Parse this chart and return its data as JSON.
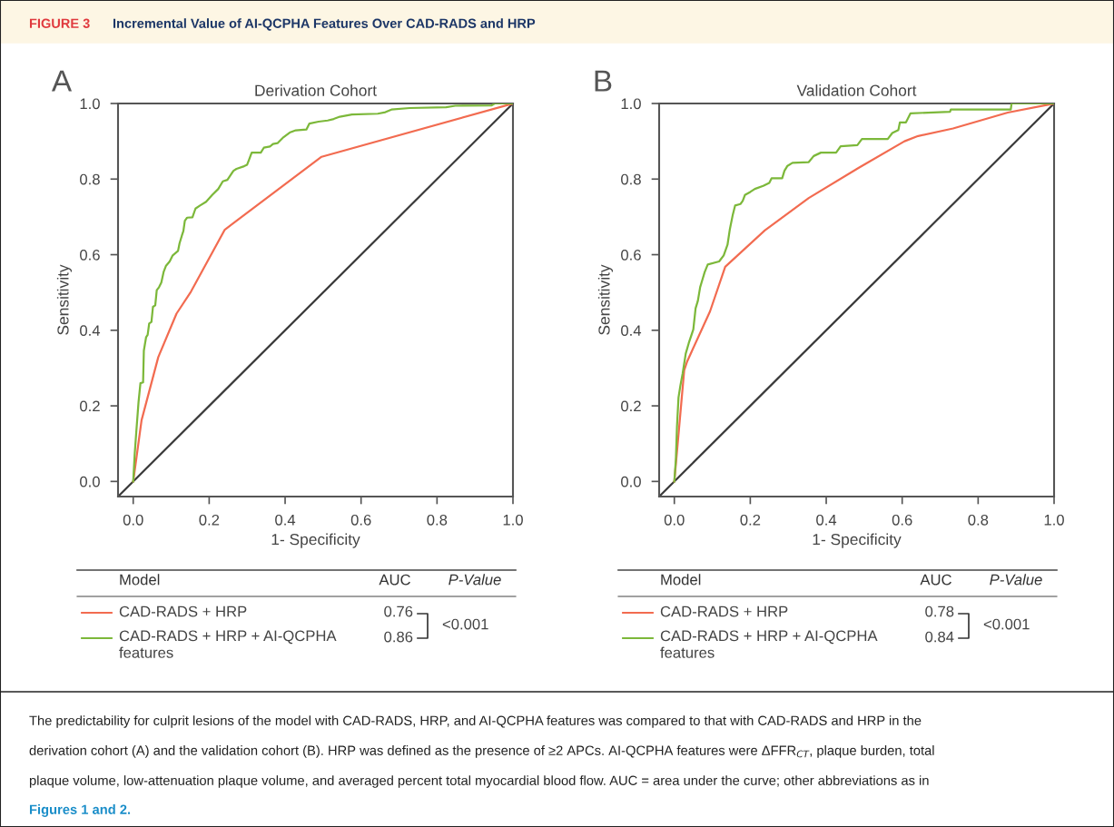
{
  "chart_data": [
    {
      "type": "line",
      "title": "Derivation Cohort",
      "xlabel": "1- Specificity",
      "ylabel": "Sensitivity",
      "xlim": [
        -0.04,
        1.0
      ],
      "ylim": [
        -0.04,
        1.0
      ],
      "xticks": [
        {
          "value": 0,
          "label": "0.0"
        },
        {
          "value": 0.2,
          "label": "0.2"
        },
        {
          "value": 0.4,
          "label": "0.4"
        },
        {
          "value": 0.6,
          "label": "0.6"
        },
        {
          "value": 0.8,
          "label": "0.8"
        },
        {
          "value": 1.0,
          "label": "1.0"
        }
      ],
      "yticks": [
        {
          "value": 0,
          "label": "0.0"
        },
        {
          "value": 0.2,
          "label": "0.2"
        },
        {
          "value": 0.4,
          "label": "0.4"
        },
        {
          "value": 0.6,
          "label": "0.6"
        },
        {
          "value": 0.8,
          "label": "0.8"
        },
        {
          "value": 1.0,
          "label": "1.0"
        }
      ],
      "grid": false,
      "legend": "bottom",
      "marker": "none",
      "line_style": "solid",
      "series": [
        {
          "color": "#3a3a3a",
          "x": [
            -0.04,
            1.0
          ],
          "values": [
            -0.04,
            1.0
          ]
        },
        {
          "name": "CAD-RADS + HRP",
          "color": "#f26b50",
          "x": [
            0,
            0.022,
            0.066,
            0.114,
            0.152,
            0.241,
            0.496,
            1.0
          ],
          "values": [
            0,
            0.162,
            0.329,
            0.444,
            0.502,
            0.666,
            0.859,
            1.0
          ]
        },
        {
          "name": "CAD-RADS + HRP + AI-QCPHA features",
          "color": "#7cb83a",
          "x": [
            0,
            0.004,
            0.008,
            0.014,
            0.019,
            0.026,
            0.028,
            0.034,
            0.038,
            0.042,
            0.048,
            0.052,
            0.058,
            0.062,
            0.068,
            0.074,
            0.08,
            0.086,
            0.096,
            0.104,
            0.118,
            0.122,
            0.128,
            0.132,
            0.136,
            0.142,
            0.156,
            0.164,
            0.176,
            0.192,
            0.208,
            0.224,
            0.236,
            0.248,
            0.256,
            0.264,
            0.272,
            0.292,
            0.3,
            0.306,
            0.312,
            0.336,
            0.344,
            0.36,
            0.368,
            0.38,
            0.396,
            0.412,
            0.428,
            0.456,
            0.464,
            0.488,
            0.512,
            0.528,
            0.544,
            0.576,
            0.644,
            0.664,
            0.68,
            0.728,
            0.824,
            0.848,
            0.944,
            0.952,
            1.0
          ],
          "values": [
            0,
            0.074,
            0.13,
            0.21,
            0.26,
            0.262,
            0.346,
            0.382,
            0.388,
            0.418,
            0.422,
            0.462,
            0.466,
            0.506,
            0.514,
            0.526,
            0.554,
            0.57,
            0.582,
            0.598,
            0.61,
            0.63,
            0.65,
            0.662,
            0.69,
            0.698,
            0.699,
            0.722,
            0.73,
            0.74,
            0.758,
            0.774,
            0.794,
            0.798,
            0.81,
            0.822,
            0.827,
            0.834,
            0.838,
            0.854,
            0.87,
            0.87,
            0.883,
            0.886,
            0.893,
            0.895,
            0.911,
            0.923,
            0.929,
            0.931,
            0.947,
            0.952,
            0.955,
            0.959,
            0.965,
            0.971,
            0.973,
            0.977,
            0.984,
            0.988,
            0.99,
            0.994,
            0.995,
            1.0,
            1.0
          ]
        }
      ],
      "annotations": [
        "A",
        "Model",
        "AUC",
        "P-Value",
        "0.76",
        "0.86",
        "<0.001",
        "FIGURE 3",
        "Incremental Value of AI-QCPHA Features Over CAD-RADS and HRP",
        "The predictability for culprit lesions of the model with CAD-RADS, HRP, and AI-QCPHA features was compared to that with CAD-RADS and HRP in the",
        "derivation cohort (A) and the validation cohort (B). HRP was defined as the presence of ≥2 APCs. AI-QCPHA features were ΔFFR$_{CT}$, plaque burden, total",
        "plaque volume, low-attenuation plaque volume, and averaged percent total myocardial blood flow. AUC = area under the curve; other abbreviations as in",
        "Figures 1 and 2."
      ]
    },
    {
      "type": "line",
      "title": "Validation Cohort",
      "xlabel": "1- Specificity",
      "ylabel": "Sensitivity",
      "xlim": [
        -0.04,
        1.0
      ],
      "ylim": [
        -0.04,
        1.0
      ],
      "xticks": [
        {
          "value": 0,
          "label": "0.0"
        },
        {
          "value": 0.2,
          "label": "0.2"
        },
        {
          "value": 0.4,
          "label": "0.4"
        },
        {
          "value": 0.6,
          "label": "0.6"
        },
        {
          "value": 0.8,
          "label": "0.8"
        },
        {
          "value": 1.0,
          "label": "1.0"
        }
      ],
      "yticks": [
        {
          "value": 0,
          "label": "0.0"
        },
        {
          "value": 0.2,
          "label": "0.2"
        },
        {
          "value": 0.4,
          "label": "0.4"
        },
        {
          "value": 0.6,
          "label": "0.6"
        },
        {
          "value": 0.8,
          "label": "0.8"
        },
        {
          "value": 1.0,
          "label": "1.0"
        }
      ],
      "grid": false,
      "legend": "bottom",
      "marker": "none",
      "line_style": "solid",
      "series": [
        {
          "color": "#3a3a3a",
          "x": [
            -0.04,
            1.0
          ],
          "values": [
            -0.04,
            1.0
          ]
        },
        {
          "name": "CAD-RADS + HRP",
          "color": "#f26b50",
          "x": [
            0,
            0.026,
            0.034,
            0.094,
            0.134,
            0.238,
            0.354,
            0.486,
            0.606,
            0.642,
            0.734,
            0.878,
            1.0
          ],
          "values": [
            0,
            0.294,
            0.318,
            0.45,
            0.568,
            0.664,
            0.75,
            0.83,
            0.9,
            0.914,
            0.934,
            0.976,
            1.0
          ]
        },
        {
          "name": "CAD-RADS + HRP + AI-QCPHA features",
          "color": "#7cb83a",
          "x": [
            0,
            0.004,
            0.007,
            0.011,
            0.016,
            0.022,
            0.03,
            0.038,
            0.05,
            0.056,
            0.062,
            0.068,
            0.074,
            0.08,
            0.088,
            0.118,
            0.13,
            0.14,
            0.146,
            0.154,
            0.16,
            0.174,
            0.18,
            0.186,
            0.2,
            0.212,
            0.234,
            0.25,
            0.256,
            0.284,
            0.29,
            0.298,
            0.311,
            0.354,
            0.367,
            0.386,
            0.426,
            0.438,
            0.482,
            0.494,
            0.562,
            0.574,
            0.59,
            0.594,
            0.61,
            0.622,
            0.726,
            0.728,
            0.886,
            0.888,
            1.0
          ],
          "values": [
            0,
            0.058,
            0.146,
            0.222,
            0.254,
            0.286,
            0.338,
            0.366,
            0.402,
            0.458,
            0.478,
            0.514,
            0.534,
            0.554,
            0.574,
            0.582,
            0.598,
            0.626,
            0.666,
            0.706,
            0.73,
            0.734,
            0.742,
            0.758,
            0.766,
            0.774,
            0.782,
            0.79,
            0.802,
            0.802,
            0.822,
            0.835,
            0.843,
            0.845,
            0.861,
            0.87,
            0.87,
            0.887,
            0.89,
            0.906,
            0.906,
            0.922,
            0.93,
            0.95,
            0.95,
            0.974,
            0.978,
            0.984,
            0.984,
            1.0,
            1.0
          ]
        }
      ],
      "annotations": [
        "B",
        "Model",
        "AUC",
        "P-Value",
        "0.78",
        "0.84",
        "<0.001"
      ]
    }
  ]
}
